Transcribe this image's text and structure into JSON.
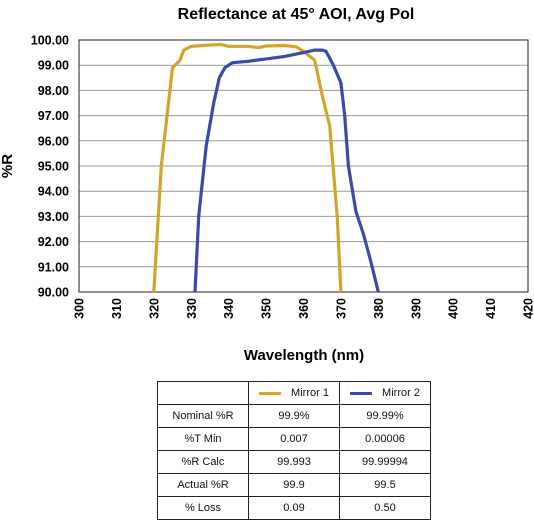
{
  "chart_data": {
    "type": "line",
    "title": "Reflectance at 45° AOI, Avg Pol",
    "xlabel": "Wavelength (nm)",
    "ylabel": "%R",
    "xlim": [
      300,
      420
    ],
    "ylim": [
      90,
      100
    ],
    "x_ticks": [
      "300",
      "310",
      "320",
      "330",
      "340",
      "350",
      "360",
      "370",
      "380",
      "390",
      "400",
      "410",
      "420"
    ],
    "y_ticks": [
      "90.00",
      "91.00",
      "92.00",
      "93.00",
      "94.00",
      "95.00",
      "96.00",
      "97.00",
      "98.00",
      "99.00",
      "100.00"
    ],
    "grid": "horizontal",
    "series": [
      {
        "name": "Mirror 1",
        "color": "#d4a52a",
        "points": [
          [
            320.0,
            90.0
          ],
          [
            322.0,
            95.0
          ],
          [
            325.0,
            98.9
          ],
          [
            327.0,
            99.2
          ],
          [
            328.0,
            99.6
          ],
          [
            330.0,
            99.75
          ],
          [
            335.0,
            99.8
          ],
          [
            338.0,
            99.82
          ],
          [
            340.0,
            99.75
          ],
          [
            345.0,
            99.75
          ],
          [
            348.0,
            99.7
          ],
          [
            350.0,
            99.76
          ],
          [
            355.0,
            99.78
          ],
          [
            358.0,
            99.73
          ],
          [
            360.0,
            99.55
          ],
          [
            363.0,
            99.2
          ],
          [
            365.0,
            97.8
          ],
          [
            367.0,
            96.6
          ],
          [
            369.0,
            93.0
          ],
          [
            370.0,
            90.0
          ]
        ]
      },
      {
        "name": "Mirror 2",
        "color": "#3c4aa8",
        "points": [
          [
            331.0,
            90.0
          ],
          [
            332.0,
            93.0
          ],
          [
            334.0,
            95.8
          ],
          [
            336.0,
            97.5
          ],
          [
            337.5,
            98.5
          ],
          [
            339.0,
            98.9
          ],
          [
            341.0,
            99.1
          ],
          [
            345.0,
            99.15
          ],
          [
            350.0,
            99.25
          ],
          [
            355.0,
            99.35
          ],
          [
            360.0,
            99.5
          ],
          [
            363.0,
            99.6
          ],
          [
            365.0,
            99.6
          ],
          [
            366.0,
            99.55
          ],
          [
            368.0,
            99.0
          ],
          [
            370.0,
            98.3
          ],
          [
            371.0,
            97.0
          ],
          [
            372.0,
            95.0
          ],
          [
            374.0,
            93.2
          ],
          [
            376.0,
            92.3
          ],
          [
            378.0,
            91.2
          ],
          [
            380.0,
            90.0
          ]
        ]
      }
    ]
  },
  "table": {
    "legend": [
      "Mirror 1",
      "Mirror 2"
    ],
    "rows": [
      {
        "label": "Nominal %R",
        "values": [
          "99.9%",
          "99.99%"
        ]
      },
      {
        "label": "%T Min",
        "values": [
          "0.007",
          "0.00006"
        ]
      },
      {
        "label": "%R Calc",
        "values": [
          "99.993",
          "99.99994"
        ]
      },
      {
        "label": "Actual %R",
        "values": [
          "99.9",
          "99.5"
        ]
      },
      {
        "label": "% Loss",
        "values": [
          "0.09",
          "0.50"
        ]
      }
    ]
  }
}
